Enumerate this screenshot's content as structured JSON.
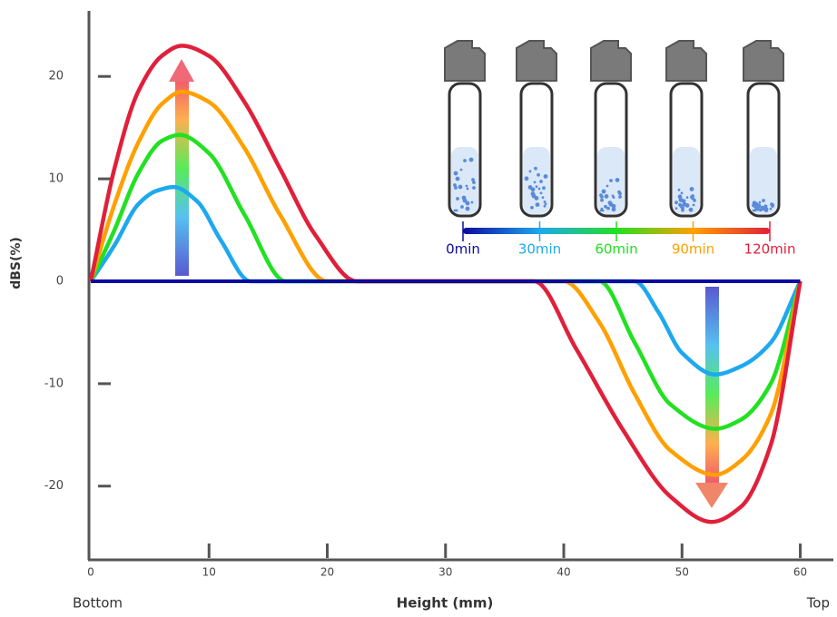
{
  "chart_data": {
    "type": "line",
    "ylabel": "dBS(%)",
    "xlabel": "Height (mm)",
    "x_start_label": "Bottom",
    "x_end_label": "Top",
    "xlim": [
      0,
      62.8
    ],
    "ylim": [
      -27.2,
      26.4
    ],
    "xticks": [
      0,
      10,
      20,
      30,
      40,
      50,
      60
    ],
    "yticks": [
      -20,
      -10,
      0,
      10,
      20
    ],
    "series": [
      {
        "name": "0min",
        "color": "#0a0a9e",
        "x": [
          0,
          60
        ],
        "values": [
          0,
          0
        ]
      },
      {
        "name": "30min",
        "color": "#1ea8ee",
        "x": [
          0,
          2,
          4,
          5.5,
          7,
          9,
          11,
          13.5,
          46,
          48,
          50,
          52.8,
          55,
          57.5,
          60
        ],
        "values": [
          0,
          3.5,
          7.5,
          8.8,
          9.2,
          7.8,
          4,
          0,
          0,
          -3,
          -7,
          -9.1,
          -8.3,
          -6,
          0
        ]
      },
      {
        "name": "60min",
        "color": "#22e022",
        "x": [
          0,
          2,
          4,
          6,
          7.5,
          10,
          13,
          16.5,
          43,
          46,
          49,
          52.8,
          55,
          57.5,
          60
        ],
        "values": [
          0,
          5,
          10.5,
          13.7,
          14.3,
          12.5,
          6.5,
          0,
          0,
          -6,
          -12,
          -14.4,
          -13.5,
          -10,
          0
        ]
      },
      {
        "name": "90min",
        "color": "#ffa000",
        "x": [
          0,
          2,
          4,
          6,
          7.7,
          10,
          13,
          16,
          20,
          40,
          43,
          46,
          49,
          52.8,
          55,
          57.5,
          60
        ],
        "values": [
          0,
          7.5,
          13.5,
          17.3,
          18.5,
          17.5,
          13,
          6.5,
          0,
          0,
          -4,
          -11,
          -16.5,
          -18.9,
          -17.5,
          -13,
          0
        ]
      },
      {
        "name": "120min",
        "color": "#e0203a",
        "x": [
          0,
          2,
          4,
          6,
          7.7,
          10,
          13,
          16,
          19,
          22.5,
          37.5,
          41,
          45,
          49,
          52.5,
          55,
          57.5,
          60
        ],
        "values": [
          0,
          11,
          18.5,
          22,
          23,
          22,
          17.5,
          11,
          4.5,
          0,
          0,
          -6.5,
          -14.5,
          -21,
          -23.5,
          -22,
          -16,
          0
        ]
      }
    ]
  }
}
